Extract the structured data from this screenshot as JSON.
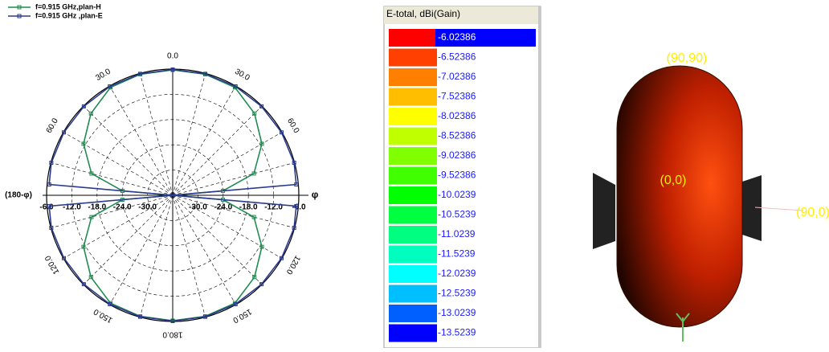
{
  "chart_data": {
    "type": "polar",
    "x": [
      0,
      15,
      30,
      45,
      60,
      75,
      85,
      90,
      95,
      105,
      120,
      135,
      150,
      165,
      180,
      195,
      210,
      225,
      240,
      255,
      265,
      270,
      275,
      285,
      300,
      315,
      330,
      345,
      360
    ],
    "series": [
      {
        "name": "f=0.915 GHz,plan-H",
        "color": "#1e8c50",
        "values": [
          -6.2,
          -6.2,
          -6.4,
          -8.5,
          -11.5,
          -16,
          -24,
          -36,
          -24,
          -16,
          -11.5,
          -8.5,
          -6.4,
          -6.2,
          -6.2,
          -6.2,
          -6.4,
          -8.5,
          -11.5,
          -16,
          -24,
          -36,
          -24,
          -16,
          -11.5,
          -8.5,
          -6.4,
          -6.2,
          -6.2
        ]
      },
      {
        "name": "f=0.915 GHz ,plan-E",
        "color": "#2a3a8c",
        "values": [
          -6.1,
          -6.1,
          -6.1,
          -6.1,
          -6.1,
          -6.1,
          -6.5,
          -36,
          -6.5,
          -6.1,
          -6.1,
          -6.1,
          -6.1,
          -6.1,
          -6.1,
          -6.1,
          -6.1,
          -6.1,
          -6.1,
          -6.1,
          -6.5,
          -36,
          -6.5,
          -6.1,
          -6.1,
          -6.1,
          -6.1,
          -6.1,
          -6.1
        ]
      }
    ],
    "rlim": [
      -36,
      -6
    ],
    "rticks": [
      {
        "value": -6,
        "label": "-6.0"
      },
      {
        "value": -12,
        "label": "-12.0"
      },
      {
        "value": -18,
        "label": "-18.0"
      },
      {
        "value": -24,
        "label": "-24.0"
      },
      {
        "value": -30,
        "label": "-30.0"
      }
    ],
    "thetaticks": [
      {
        "value": 0,
        "label": "0.0"
      },
      {
        "value": 30,
        "label": "30.0"
      },
      {
        "value": 60,
        "label": "60.0"
      },
      {
        "value": 120,
        "label": "120.0"
      },
      {
        "value": 150,
        "label": "150.0"
      },
      {
        "value": 180,
        "label": "180.0"
      }
    ],
    "left_label": "(180-φ)",
    "right_label": "φ",
    "grid": true
  },
  "color_legend": {
    "title": "E-total, dBi(Gain)",
    "levels": [
      {
        "value": -6.02386,
        "color": "#ff0000"
      },
      {
        "value": -6.52386,
        "color": "#ff4000"
      },
      {
        "value": -7.02386,
        "color": "#ff8000"
      },
      {
        "value": -7.52386,
        "color": "#ffbf00"
      },
      {
        "value": -8.02386,
        "color": "#ffff00"
      },
      {
        "value": -8.52386,
        "color": "#bfff00"
      },
      {
        "value": -9.02386,
        "color": "#80ff00"
      },
      {
        "value": -9.52386,
        "color": "#40ff00"
      },
      {
        "value": -10.0239,
        "color": "#00ff00"
      },
      {
        "value": -10.5239,
        "color": "#00ff40"
      },
      {
        "value": -11.0239,
        "color": "#00ff80"
      },
      {
        "value": -11.5239,
        "color": "#00ffbf"
      },
      {
        "value": -12.0239,
        "color": "#00ffff"
      },
      {
        "value": -12.5239,
        "color": "#00bfff"
      },
      {
        "value": -13.0239,
        "color": "#0060ff"
      },
      {
        "value": -13.5239,
        "color": "#0000ff"
      }
    ]
  },
  "render": {
    "labels": [
      "(90,90)",
      "(0,0)",
      "(90,0)"
    ]
  }
}
